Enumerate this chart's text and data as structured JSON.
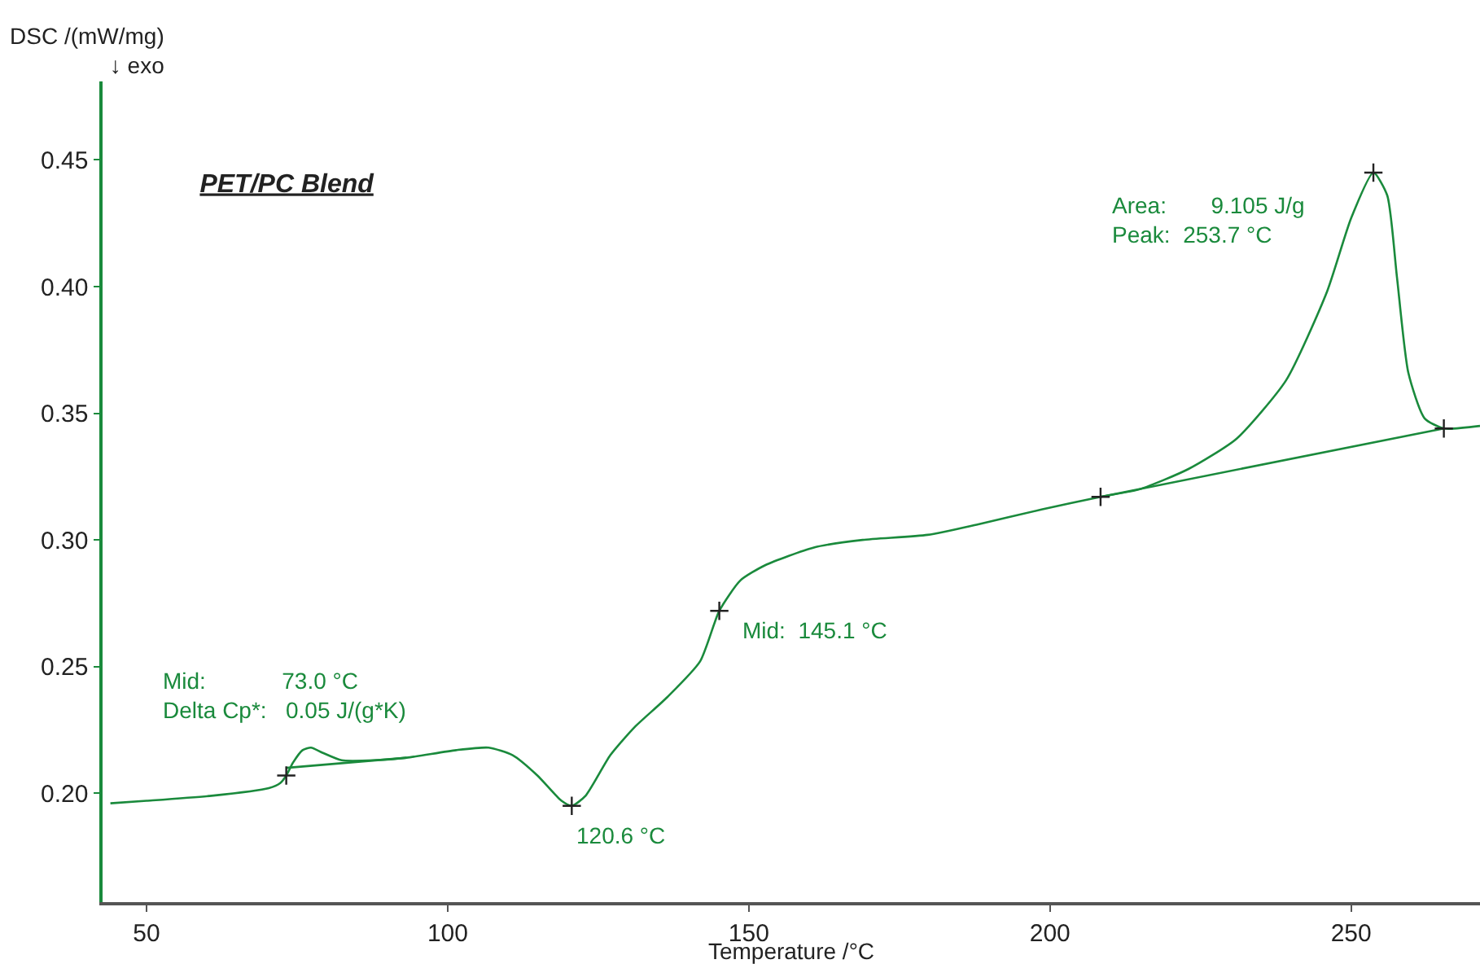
{
  "chart_data": {
    "type": "line",
    "title": "PET/PC Blend",
    "xlabel": "Temperature /°C",
    "ylabel": "DSC /(mW/mg)\n↓ exo",
    "xlim": [
      42.7,
      271.4
    ],
    "ylim": [
      0.157,
      0.481
    ],
    "xticks": [
      50,
      100,
      150,
      200,
      250
    ],
    "yticks": [
      {
        "value": 0.2,
        "label": "0.20"
      },
      0.25,
      {
        "value": 0.3,
        "label": "0.30"
      },
      0.35,
      {
        "value": 0.4,
        "label": "0.40"
      },
      0.45
    ],
    "line_style": "solid",
    "marker": "none",
    "series": [
      {
        "color": "#1a8a3c",
        "x": [
          44,
          50,
          60.8,
          70.3,
          72.2,
          73.2,
          74.3,
          75.9,
          77.3,
          79.2,
          82.4,
          87.8,
          93.2,
          101.4,
          106.8,
          110.8,
          114.9,
          118.9,
          120.6,
          122.9,
          127,
          131,
          136.5,
          141.9,
          145.1,
          148.6,
          152.7,
          160.8,
          168.9,
          179.7,
          187.8,
          198.6,
          208.4,
          214.9,
          223,
          231,
          239.2,
          246,
          250,
          253.7,
          256,
          257.6,
          259.5,
          262.2,
          265.4,
          271.4
        ],
        "values": [
          0.196,
          0.197,
          0.199,
          0.202,
          0.204,
          0.207,
          0.212,
          0.217,
          0.218,
          0.216,
          0.213,
          0.213,
          0.214,
          0.217,
          0.218,
          0.215,
          0.207,
          0.197,
          0.195,
          0.199,
          0.215,
          0.226,
          0.238,
          0.252,
          0.272,
          0.284,
          0.29,
          0.297,
          0.3,
          0.302,
          0.306,
          0.312,
          0.317,
          0.32,
          0.328,
          0.34,
          0.363,
          0.398,
          0.427,
          0.445,
          0.436,
          0.404,
          0.366,
          0.348,
          0.344,
          0.345
        ]
      },
      {
        "color": "#1a8a3c",
        "x": [
          208.4,
          265.4
        ],
        "values": [
          0.317,
          0.344
        ]
      },
      {
        "color": "#1a8a3c",
        "x": [
          73.2,
          93.2
        ],
        "values": [
          0.21,
          0.214
        ]
      },
      {
        "type": "scatter",
        "marker": "cross",
        "color": "#222222",
        "x": [
          73.2,
          120.6,
          145.1,
          208.4,
          253.7,
          265.4
        ],
        "values": [
          0.207,
          0.195,
          0.272,
          0.317,
          0.445,
          0.344
        ]
      }
    ],
    "annotations": [
      "Mid:            73.0 °C\nDelta Cp*:   0.05 J/(g*K)",
      {
        "text": "120.6 °C",
        "x": 120.6,
        "y": 0.195
      },
      {
        "text": "Mid:  145.1 °C",
        "x": 145.1,
        "y": 0.272
      },
      "Area:       9.105 J/g\nPeak:  253.7 °C"
    ]
  }
}
